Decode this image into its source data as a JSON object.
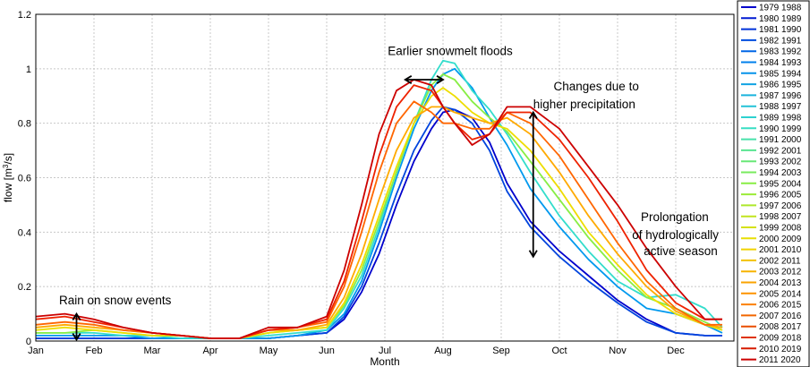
{
  "chart_data": {
    "type": "line",
    "title": "",
    "xlabel": "Month",
    "ylabel": "flow [m",
    "ylabel_sup": "3",
    "ylabel_tail": "/s]",
    "xlim": [
      0,
      12
    ],
    "ylim": [
      0,
      1.2
    ],
    "yticks": [
      0,
      0.2,
      0.4,
      0.6,
      0.8,
      1,
      1.2
    ],
    "ytick_labels": [
      "0",
      "0.2",
      "0.4",
      "0.6",
      "0.8",
      "1",
      "1.2"
    ],
    "xticks": [
      0,
      1,
      2,
      3,
      4,
      5,
      6,
      7,
      8,
      9,
      10,
      11
    ],
    "xtick_labels": [
      "Jan",
      "Feb",
      "Mar",
      "Apr",
      "May",
      "Jun",
      "Jul",
      "Aug",
      "Sep",
      "Oct",
      "Nov",
      "Dec"
    ],
    "grid": true,
    "legend_position": "right-outside",
    "legend": [
      "1979 1988",
      "1980 1989",
      "1981 1990",
      "1982 1991",
      "1983 1992",
      "1984 1993",
      "1985 1994",
      "1986 1995",
      "1987 1996",
      "1988 1997",
      "1989 1998",
      "1990 1999",
      "1991 2000",
      "1992 2001",
      "1993 2002",
      "1994 2003",
      "1995 2004",
      "1996 2005",
      "1997 2006",
      "1998 2007",
      "1999 2008",
      "2000 2009",
      "2001 2010",
      "2002 2011",
      "2003 2012",
      "2004 2013",
      "2005 2014",
      "2006 2015",
      "2007 2016",
      "2008 2017",
      "2009 2018",
      "2010 2019",
      "2011 2020"
    ],
    "series": [
      {
        "color": "#0000cc",
        "x": [
          0,
          0.5,
          1,
          1.5,
          2,
          2.5,
          3,
          3.5,
          4,
          4.5,
          5,
          5.3,
          5.6,
          5.9,
          6.2,
          6.5,
          6.8,
          7.0,
          7.2,
          7.5,
          7.8,
          8.1,
          8.5,
          9,
          9.5,
          10,
          10.5,
          11,
          11.5,
          11.8
        ],
        "y": [
          0.01,
          0.01,
          0.01,
          0.01,
          0.01,
          0.01,
          0.01,
          0.01,
          0.01,
          0.02,
          0.03,
          0.08,
          0.18,
          0.32,
          0.5,
          0.66,
          0.78,
          0.84,
          0.85,
          0.82,
          0.73,
          0.58,
          0.44,
          0.33,
          0.24,
          0.15,
          0.08,
          0.03,
          0.02,
          0.02
        ]
      },
      {
        "color": "#0044dd",
        "x": [
          0,
          0.5,
          1,
          1.5,
          2,
          2.5,
          3,
          3.5,
          4,
          4.5,
          5,
          5.3,
          5.6,
          5.9,
          6.2,
          6.5,
          6.8,
          7.0,
          7.2,
          7.5,
          7.8,
          8.1,
          8.5,
          9,
          9.5,
          10,
          10.5,
          11,
          11.5,
          11.8
        ],
        "y": [
          0.01,
          0.01,
          0.01,
          0.01,
          0.01,
          0.01,
          0.01,
          0.01,
          0.01,
          0.02,
          0.03,
          0.09,
          0.2,
          0.36,
          0.54,
          0.7,
          0.81,
          0.86,
          0.85,
          0.8,
          0.7,
          0.55,
          0.42,
          0.31,
          0.22,
          0.14,
          0.07,
          0.03,
          0.02,
          0.02
        ]
      },
      {
        "color": "#0099ee",
        "x": [
          0,
          0.5,
          1,
          1.5,
          2,
          2.5,
          3,
          3.5,
          4,
          4.5,
          5,
          5.3,
          5.6,
          5.9,
          6.2,
          6.5,
          6.8,
          7.0,
          7.2,
          7.5,
          7.8,
          8.1,
          8.5,
          9,
          9.5,
          10,
          10.5,
          11,
          11.5,
          11.8
        ],
        "y": [
          0.02,
          0.02,
          0.02,
          0.02,
          0.01,
          0.01,
          0.01,
          0.01,
          0.01,
          0.02,
          0.04,
          0.1,
          0.22,
          0.4,
          0.6,
          0.78,
          0.92,
          0.98,
          1.0,
          0.93,
          0.82,
          0.72,
          0.56,
          0.42,
          0.3,
          0.2,
          0.12,
          0.1,
          0.06,
          0.03
        ]
      },
      {
        "color": "#33ddcc",
        "x": [
          0,
          0.5,
          1,
          1.5,
          2,
          2.5,
          3,
          3.5,
          4,
          4.5,
          5,
          5.3,
          5.6,
          5.9,
          6.2,
          6.5,
          6.8,
          7.0,
          7.2,
          7.5,
          7.8,
          8.1,
          8.5,
          9,
          9.5,
          10,
          10.5,
          11,
          11.5,
          11.8
        ],
        "y": [
          0.03,
          0.03,
          0.03,
          0.02,
          0.02,
          0.01,
          0.01,
          0.01,
          0.02,
          0.03,
          0.04,
          0.12,
          0.24,
          0.42,
          0.62,
          0.8,
          0.96,
          1.03,
          1.02,
          0.92,
          0.85,
          0.76,
          0.62,
          0.46,
          0.33,
          0.22,
          0.16,
          0.17,
          0.12,
          0.05
        ]
      },
      {
        "color": "#88ee44",
        "x": [
          0,
          0.5,
          1,
          1.5,
          2,
          2.5,
          3,
          3.5,
          4,
          4.5,
          5,
          5.3,
          5.6,
          5.9,
          6.2,
          6.5,
          6.8,
          7.0,
          7.2,
          7.5,
          7.8,
          8.1,
          8.5,
          9,
          9.5,
          10,
          10.5,
          11,
          11.5,
          11.8
        ],
        "y": [
          0.03,
          0.03,
          0.04,
          0.03,
          0.02,
          0.02,
          0.01,
          0.01,
          0.03,
          0.04,
          0.05,
          0.13,
          0.26,
          0.44,
          0.62,
          0.8,
          0.94,
          0.98,
          0.96,
          0.88,
          0.82,
          0.77,
          0.66,
          0.52,
          0.38,
          0.26,
          0.16,
          0.12,
          0.07,
          0.04
        ]
      },
      {
        "color": "#eedd00",
        "x": [
          0,
          0.5,
          1,
          1.5,
          2,
          2.5,
          3,
          3.5,
          4,
          4.5,
          5,
          5.3,
          5.6,
          5.9,
          6.2,
          6.5,
          6.8,
          7.0,
          7.2,
          7.5,
          7.8,
          8.1,
          8.5,
          9,
          9.5,
          10,
          10.5,
          11,
          11.5,
          11.8
        ],
        "y": [
          0.04,
          0.05,
          0.04,
          0.03,
          0.02,
          0.02,
          0.01,
          0.01,
          0.03,
          0.04,
          0.05,
          0.14,
          0.28,
          0.46,
          0.64,
          0.8,
          0.9,
          0.93,
          0.9,
          0.84,
          0.8,
          0.78,
          0.7,
          0.56,
          0.4,
          0.28,
          0.17,
          0.1,
          0.06,
          0.04
        ]
      },
      {
        "color": "#ffaa00",
        "x": [
          0,
          0.5,
          1,
          1.5,
          2,
          2.5,
          3,
          3.5,
          4,
          4.5,
          5,
          5.3,
          5.6,
          5.9,
          6.2,
          6.5,
          6.8,
          7.0,
          7.2,
          7.5,
          7.8,
          8.1,
          8.5,
          9,
          9.5,
          10,
          10.5,
          11,
          11.5,
          11.8
        ],
        "y": [
          0.05,
          0.06,
          0.05,
          0.04,
          0.03,
          0.02,
          0.01,
          0.01,
          0.04,
          0.04,
          0.06,
          0.16,
          0.32,
          0.52,
          0.7,
          0.82,
          0.86,
          0.86,
          0.84,
          0.82,
          0.8,
          0.82,
          0.76,
          0.62,
          0.46,
          0.32,
          0.2,
          0.11,
          0.06,
          0.05
        ]
      },
      {
        "color": "#ff6600",
        "x": [
          0,
          0.5,
          1,
          1.5,
          2,
          2.5,
          3,
          3.5,
          4,
          4.5,
          5,
          5.3,
          5.6,
          5.9,
          6.2,
          6.5,
          6.8,
          7.0,
          7.2,
          7.5,
          7.8,
          8.1,
          8.5,
          9,
          9.5,
          10,
          10.5,
          11,
          11.5,
          11.8
        ],
        "y": [
          0.06,
          0.07,
          0.06,
          0.04,
          0.03,
          0.02,
          0.01,
          0.01,
          0.04,
          0.05,
          0.07,
          0.2,
          0.4,
          0.62,
          0.8,
          0.88,
          0.84,
          0.8,
          0.8,
          0.78,
          0.78,
          0.84,
          0.8,
          0.68,
          0.52,
          0.36,
          0.22,
          0.12,
          0.06,
          0.06
        ]
      },
      {
        "color": "#ee2200",
        "x": [
          0,
          0.5,
          1,
          1.5,
          2,
          2.5,
          3,
          3.5,
          4,
          4.5,
          5,
          5.3,
          5.6,
          5.9,
          6.2,
          6.5,
          6.8,
          7.0,
          7.2,
          7.5,
          7.8,
          8.1,
          8.5,
          9,
          9.5,
          10,
          10.5,
          11,
          11.5,
          11.8
        ],
        "y": [
          0.08,
          0.09,
          0.07,
          0.05,
          0.03,
          0.02,
          0.01,
          0.01,
          0.04,
          0.05,
          0.08,
          0.22,
          0.44,
          0.68,
          0.86,
          0.94,
          0.92,
          0.86,
          0.8,
          0.74,
          0.76,
          0.84,
          0.84,
          0.74,
          0.6,
          0.44,
          0.26,
          0.14,
          0.08,
          0.08
        ]
      },
      {
        "color": "#cc0000",
        "x": [
          0,
          0.5,
          1,
          1.5,
          2,
          2.5,
          3,
          3.5,
          4,
          4.5,
          5,
          5.3,
          5.6,
          5.9,
          6.2,
          6.5,
          6.8,
          7.0,
          7.2,
          7.5,
          7.8,
          8.1,
          8.5,
          9,
          9.5,
          10,
          10.5,
          11,
          11.5,
          11.8
        ],
        "y": [
          0.09,
          0.1,
          0.08,
          0.05,
          0.03,
          0.02,
          0.01,
          0.01,
          0.05,
          0.05,
          0.09,
          0.26,
          0.5,
          0.76,
          0.92,
          0.96,
          0.94,
          0.86,
          0.8,
          0.72,
          0.76,
          0.86,
          0.86,
          0.78,
          0.64,
          0.5,
          0.34,
          0.2,
          0.08,
          0.08
        ]
      }
    ],
    "annotations": [
      {
        "text": "Rain on snow events",
        "x": 0.4,
        "y": 0.135
      },
      {
        "text": "Earlier snowmelt floods",
        "x": 6.05,
        "y": 1.05
      },
      {
        "text": "Changes due to",
        "x": 8.9,
        "y": 0.92
      },
      {
        "text": "higher precipitation",
        "x": 8.55,
        "y": 0.855
      },
      {
        "text": "Prolongation",
        "x": 10.4,
        "y": 0.44
      },
      {
        "text": "of hydrologically",
        "x": 10.25,
        "y": 0.375
      },
      {
        "text": "active season",
        "x": 10.45,
        "y": 0.315
      }
    ],
    "arrows": [
      {
        "kind": "vertical",
        "x": 0.7,
        "y_from": 0.005,
        "y_to": 0.1
      },
      {
        "kind": "horizontal",
        "y": 0.96,
        "x_from": 6.35,
        "x_to": 7.0
      },
      {
        "kind": "vertical",
        "x": 8.55,
        "y_from": 0.31,
        "y_to": 0.84
      }
    ]
  }
}
